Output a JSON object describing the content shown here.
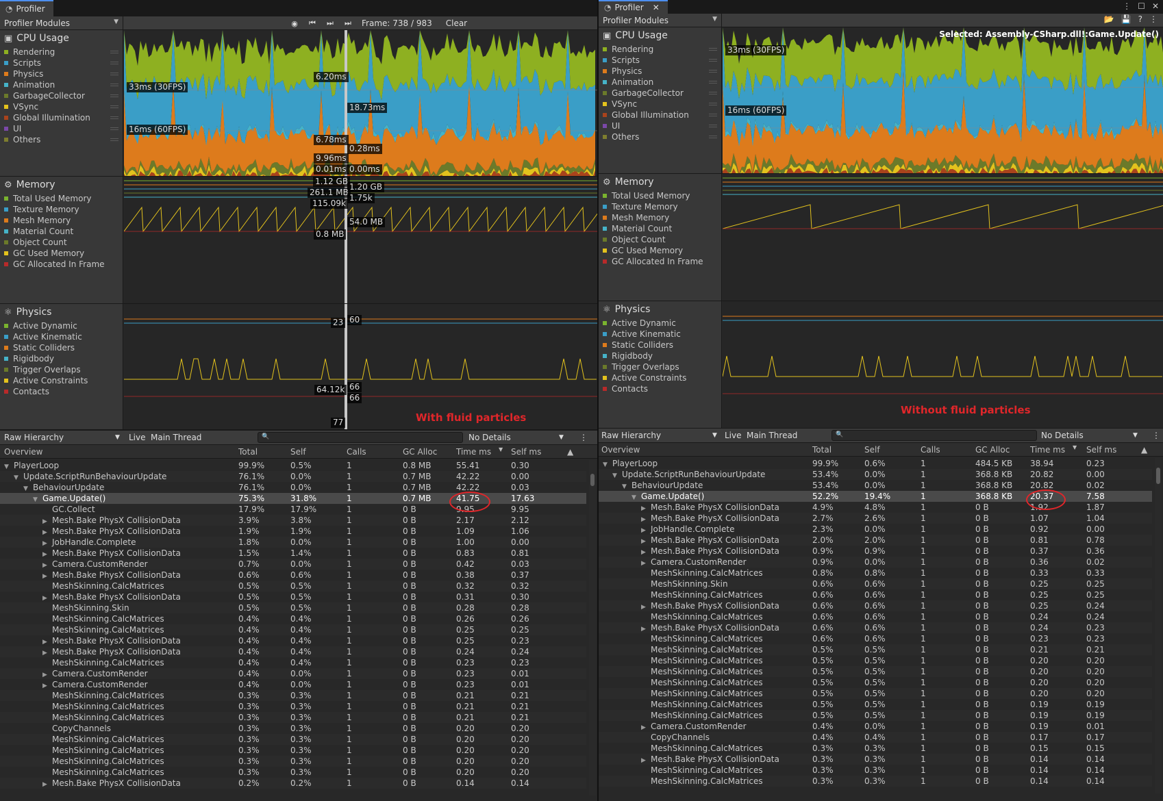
{
  "left": {
    "tab_title": "Profiler",
    "modules_dropdown": "Profiler Modules",
    "frame_label": "Frame: 738 / 983",
    "clear_label": "Clear",
    "cpu": {
      "title": "CPU Usage",
      "legend": [
        "Rendering",
        "Scripts",
        "Physics",
        "Animation",
        "GarbageCollector",
        "VSync",
        "Global Illumination",
        "UI",
        "Others"
      ],
      "markers": [
        "33ms (30FPS)",
        "16ms (60FPS)",
        "6.20ms",
        "18.73ms",
        "6.78ms",
        "0.28ms",
        "9.96ms",
        "0.01ms",
        "0.00ms"
      ]
    },
    "memory": {
      "title": "Memory",
      "legend": [
        "Total Used Memory",
        "Texture Memory",
        "Mesh Memory",
        "Material Count",
        "Object Count",
        "GC Used Memory",
        "GC Allocated In Frame"
      ],
      "markers": [
        "1.12 GB",
        "1.20 GB",
        "261.1 MB",
        "1.75k",
        "115.09k",
        "54.0 MB",
        "0.8 MB"
      ]
    },
    "physics": {
      "title": "Physics",
      "legend": [
        "Active Dynamic",
        "Active Kinematic",
        "Static Colliders",
        "Rigidbody",
        "Trigger Overlaps",
        "Active Constraints",
        "Contacts"
      ],
      "markers": [
        "23",
        "60",
        "64.12k",
        "66",
        "66",
        "77"
      ]
    },
    "caption": "With fluid particles",
    "hierarchy": {
      "view": "Raw Hierarchy",
      "live": "Live",
      "thread": "Main Thread",
      "details": "No Details",
      "columns": [
        "Overview",
        "Total",
        "Self",
        "Calls",
        "GC Alloc",
        "Time ms",
        "Self ms"
      ],
      "rows": [
        {
          "name": "PlayerLoop",
          "indent": 0,
          "arrow": "▼",
          "total": "99.9%",
          "self": "0.5%",
          "calls": "1",
          "gc": "0.8 MB",
          "time": "55.41",
          "selfms": "0.30"
        },
        {
          "name": "Update.ScriptRunBehaviourUpdate",
          "indent": 1,
          "arrow": "▼",
          "total": "76.1%",
          "self": "0.0%",
          "calls": "1",
          "gc": "0.7 MB",
          "time": "42.22",
          "selfms": "0.00"
        },
        {
          "name": "BehaviourUpdate",
          "indent": 2,
          "arrow": "▼",
          "total": "76.1%",
          "self": "0.0%",
          "calls": "1",
          "gc": "0.7 MB",
          "time": "42.22",
          "selfms": "0.03"
        },
        {
          "name": "Game.Update()",
          "indent": 3,
          "arrow": "▼",
          "total": "75.3%",
          "self": "31.8%",
          "calls": "1",
          "gc": "0.7 MB",
          "time": "41.75",
          "selfms": "17.63",
          "sel": true
        },
        {
          "name": "GC.Collect",
          "indent": 4,
          "arrow": "",
          "total": "17.9%",
          "self": "17.9%",
          "calls": "1",
          "gc": "0 B",
          "time": "9.95",
          "selfms": "9.95"
        },
        {
          "name": "Mesh.Bake PhysX CollisionData",
          "indent": 4,
          "arrow": "▶",
          "total": "3.9%",
          "self": "3.8%",
          "calls": "1",
          "gc": "0 B",
          "time": "2.17",
          "selfms": "2.12"
        },
        {
          "name": "Mesh.Bake PhysX CollisionData",
          "indent": 4,
          "arrow": "▶",
          "total": "1.9%",
          "self": "1.9%",
          "calls": "1",
          "gc": "0 B",
          "time": "1.09",
          "selfms": "1.06"
        },
        {
          "name": "JobHandle.Complete",
          "indent": 4,
          "arrow": "▶",
          "total": "1.8%",
          "self": "0.0%",
          "calls": "1",
          "gc": "0 B",
          "time": "1.00",
          "selfms": "0.00"
        },
        {
          "name": "Mesh.Bake PhysX CollisionData",
          "indent": 4,
          "arrow": "▶",
          "total": "1.5%",
          "self": "1.4%",
          "calls": "1",
          "gc": "0 B",
          "time": "0.83",
          "selfms": "0.81"
        },
        {
          "name": "Camera.CustomRender",
          "indent": 4,
          "arrow": "▶",
          "total": "0.7%",
          "self": "0.0%",
          "calls": "1",
          "gc": "0 B",
          "time": "0.42",
          "selfms": "0.03"
        },
        {
          "name": "Mesh.Bake PhysX CollisionData",
          "indent": 4,
          "arrow": "▶",
          "total": "0.6%",
          "self": "0.6%",
          "calls": "1",
          "gc": "0 B",
          "time": "0.38",
          "selfms": "0.37"
        },
        {
          "name": "MeshSkinning.CalcMatrices",
          "indent": 4,
          "arrow": "",
          "total": "0.5%",
          "self": "0.5%",
          "calls": "1",
          "gc": "0 B",
          "time": "0.32",
          "selfms": "0.32"
        },
        {
          "name": "Mesh.Bake PhysX CollisionData",
          "indent": 4,
          "arrow": "▶",
          "total": "0.5%",
          "self": "0.5%",
          "calls": "1",
          "gc": "0 B",
          "time": "0.31",
          "selfms": "0.30"
        },
        {
          "name": "MeshSkinning.Skin",
          "indent": 4,
          "arrow": "",
          "total": "0.5%",
          "self": "0.5%",
          "calls": "1",
          "gc": "0 B",
          "time": "0.28",
          "selfms": "0.28"
        },
        {
          "name": "MeshSkinning.CalcMatrices",
          "indent": 4,
          "arrow": "",
          "total": "0.4%",
          "self": "0.4%",
          "calls": "1",
          "gc": "0 B",
          "time": "0.26",
          "selfms": "0.26"
        },
        {
          "name": "MeshSkinning.CalcMatrices",
          "indent": 4,
          "arrow": "",
          "total": "0.4%",
          "self": "0.4%",
          "calls": "1",
          "gc": "0 B",
          "time": "0.25",
          "selfms": "0.25"
        },
        {
          "name": "Mesh.Bake PhysX CollisionData",
          "indent": 4,
          "arrow": "▶",
          "total": "0.4%",
          "self": "0.4%",
          "calls": "1",
          "gc": "0 B",
          "time": "0.25",
          "selfms": "0.23"
        },
        {
          "name": "Mesh.Bake PhysX CollisionData",
          "indent": 4,
          "arrow": "▶",
          "total": "0.4%",
          "self": "0.4%",
          "calls": "1",
          "gc": "0 B",
          "time": "0.24",
          "selfms": "0.24"
        },
        {
          "name": "MeshSkinning.CalcMatrices",
          "indent": 4,
          "arrow": "",
          "total": "0.4%",
          "self": "0.4%",
          "calls": "1",
          "gc": "0 B",
          "time": "0.23",
          "selfms": "0.23"
        },
        {
          "name": "Camera.CustomRender",
          "indent": 4,
          "arrow": "▶",
          "total": "0.4%",
          "self": "0.0%",
          "calls": "1",
          "gc": "0 B",
          "time": "0.23",
          "selfms": "0.01"
        },
        {
          "name": "Camera.CustomRender",
          "indent": 4,
          "arrow": "▶",
          "total": "0.4%",
          "self": "0.0%",
          "calls": "1",
          "gc": "0 B",
          "time": "0.23",
          "selfms": "0.01"
        },
        {
          "name": "MeshSkinning.CalcMatrices",
          "indent": 4,
          "arrow": "",
          "total": "0.3%",
          "self": "0.3%",
          "calls": "1",
          "gc": "0 B",
          "time": "0.21",
          "selfms": "0.21"
        },
        {
          "name": "MeshSkinning.CalcMatrices",
          "indent": 4,
          "arrow": "",
          "total": "0.3%",
          "self": "0.3%",
          "calls": "1",
          "gc": "0 B",
          "time": "0.21",
          "selfms": "0.21"
        },
        {
          "name": "MeshSkinning.CalcMatrices",
          "indent": 4,
          "arrow": "",
          "total": "0.3%",
          "self": "0.3%",
          "calls": "1",
          "gc": "0 B",
          "time": "0.21",
          "selfms": "0.21"
        },
        {
          "name": "CopyChannels",
          "indent": 4,
          "arrow": "",
          "total": "0.3%",
          "self": "0.3%",
          "calls": "1",
          "gc": "0 B",
          "time": "0.20",
          "selfms": "0.20"
        },
        {
          "name": "MeshSkinning.CalcMatrices",
          "indent": 4,
          "arrow": "",
          "total": "0.3%",
          "self": "0.3%",
          "calls": "1",
          "gc": "0 B",
          "time": "0.20",
          "selfms": "0.20"
        },
        {
          "name": "MeshSkinning.CalcMatrices",
          "indent": 4,
          "arrow": "",
          "total": "0.3%",
          "self": "0.3%",
          "calls": "1",
          "gc": "0 B",
          "time": "0.20",
          "selfms": "0.20"
        },
        {
          "name": "MeshSkinning.CalcMatrices",
          "indent": 4,
          "arrow": "",
          "total": "0.3%",
          "self": "0.3%",
          "calls": "1",
          "gc": "0 B",
          "time": "0.20",
          "selfms": "0.20"
        },
        {
          "name": "MeshSkinning.CalcMatrices",
          "indent": 4,
          "arrow": "",
          "total": "0.3%",
          "self": "0.3%",
          "calls": "1",
          "gc": "0 B",
          "time": "0.20",
          "selfms": "0.20"
        },
        {
          "name": "Mesh.Bake PhysX CollisionData",
          "indent": 4,
          "arrow": "▶",
          "total": "0.2%",
          "self": "0.2%",
          "calls": "1",
          "gc": "0 B",
          "time": "0.14",
          "selfms": "0.14"
        }
      ]
    }
  },
  "right": {
    "tab_title": "Profiler",
    "modules_dropdown": "Profiler Modules",
    "selected_label": "Selected: Assembly-CSharp.dll!:Game.Update()",
    "cpu": {
      "title": "CPU Usage",
      "legend": [
        "Rendering",
        "Scripts",
        "Physics",
        "Animation",
        "GarbageCollector",
        "VSync",
        "Global Illumination",
        "UI",
        "Others"
      ],
      "markers": [
        "33ms (30FPS)",
        "16ms (60FPS)"
      ]
    },
    "memory": {
      "title": "Memory",
      "legend": [
        "Total Used Memory",
        "Texture Memory",
        "Mesh Memory",
        "Material Count",
        "Object Count",
        "GC Used Memory",
        "GC Allocated In Frame"
      ]
    },
    "physics": {
      "title": "Physics",
      "legend": [
        "Active Dynamic",
        "Active Kinematic",
        "Static Colliders",
        "Rigidbody",
        "Trigger Overlaps",
        "Active Constraints",
        "Contacts"
      ]
    },
    "caption": "Without fluid particles",
    "hierarchy": {
      "view": "Raw Hierarchy",
      "live": "Live",
      "thread": "Main Thread",
      "details": "No Details",
      "columns": [
        "Overview",
        "Total",
        "Self",
        "Calls",
        "GC Alloc",
        "Time ms",
        "Self ms"
      ],
      "rows": [
        {
          "name": "PlayerLoop",
          "indent": 0,
          "arrow": "▼",
          "total": "99.9%",
          "self": "0.6%",
          "calls": "1",
          "gc": "484.5 KB",
          "time": "38.94",
          "selfms": "0.23"
        },
        {
          "name": "Update.ScriptRunBehaviourUpdate",
          "indent": 1,
          "arrow": "▼",
          "total": "53.4%",
          "self": "0.0%",
          "calls": "1",
          "gc": "368.8 KB",
          "time": "20.82",
          "selfms": "0.00"
        },
        {
          "name": "BehaviourUpdate",
          "indent": 2,
          "arrow": "▼",
          "total": "53.4%",
          "self": "0.0%",
          "calls": "1",
          "gc": "368.8 KB",
          "time": "20.82",
          "selfms": "0.02"
        },
        {
          "name": "Game.Update()",
          "indent": 3,
          "arrow": "▼",
          "total": "52.2%",
          "self": "19.4%",
          "calls": "1",
          "gc": "368.8 KB",
          "time": "20.37",
          "selfms": "7.58",
          "sel": true
        },
        {
          "name": "Mesh.Bake PhysX CollisionData",
          "indent": 4,
          "arrow": "▶",
          "total": "4.9%",
          "self": "4.8%",
          "calls": "1",
          "gc": "0 B",
          "time": "1.92",
          "selfms": "1.87"
        },
        {
          "name": "Mesh.Bake PhysX CollisionData",
          "indent": 4,
          "arrow": "▶",
          "total": "2.7%",
          "self": "2.6%",
          "calls": "1",
          "gc": "0 B",
          "time": "1.07",
          "selfms": "1.04"
        },
        {
          "name": "JobHandle.Complete",
          "indent": 4,
          "arrow": "▶",
          "total": "2.3%",
          "self": "0.0%",
          "calls": "1",
          "gc": "0 B",
          "time": "0.92",
          "selfms": "0.00"
        },
        {
          "name": "Mesh.Bake PhysX CollisionData",
          "indent": 4,
          "arrow": "▶",
          "total": "2.0%",
          "self": "2.0%",
          "calls": "1",
          "gc": "0 B",
          "time": "0.81",
          "selfms": "0.78"
        },
        {
          "name": "Mesh.Bake PhysX CollisionData",
          "indent": 4,
          "arrow": "▶",
          "total": "0.9%",
          "self": "0.9%",
          "calls": "1",
          "gc": "0 B",
          "time": "0.37",
          "selfms": "0.36"
        },
        {
          "name": "Camera.CustomRender",
          "indent": 4,
          "arrow": "▶",
          "total": "0.9%",
          "self": "0.0%",
          "calls": "1",
          "gc": "0 B",
          "time": "0.36",
          "selfms": "0.02"
        },
        {
          "name": "MeshSkinning.CalcMatrices",
          "indent": 4,
          "arrow": "",
          "total": "0.8%",
          "self": "0.8%",
          "calls": "1",
          "gc": "0 B",
          "time": "0.33",
          "selfms": "0.33"
        },
        {
          "name": "MeshSkinning.Skin",
          "indent": 4,
          "arrow": "",
          "total": "0.6%",
          "self": "0.6%",
          "calls": "1",
          "gc": "0 B",
          "time": "0.25",
          "selfms": "0.25"
        },
        {
          "name": "MeshSkinning.CalcMatrices",
          "indent": 4,
          "arrow": "",
          "total": "0.6%",
          "self": "0.6%",
          "calls": "1",
          "gc": "0 B",
          "time": "0.25",
          "selfms": "0.25"
        },
        {
          "name": "Mesh.Bake PhysX CollisionData",
          "indent": 4,
          "arrow": "▶",
          "total": "0.6%",
          "self": "0.6%",
          "calls": "1",
          "gc": "0 B",
          "time": "0.25",
          "selfms": "0.24"
        },
        {
          "name": "MeshSkinning.CalcMatrices",
          "indent": 4,
          "arrow": "",
          "total": "0.6%",
          "self": "0.6%",
          "calls": "1",
          "gc": "0 B",
          "time": "0.24",
          "selfms": "0.24"
        },
        {
          "name": "Mesh.Bake PhysX CollisionData",
          "indent": 4,
          "arrow": "▶",
          "total": "0.6%",
          "self": "0.6%",
          "calls": "1",
          "gc": "0 B",
          "time": "0.24",
          "selfms": "0.23"
        },
        {
          "name": "MeshSkinning.CalcMatrices",
          "indent": 4,
          "arrow": "",
          "total": "0.6%",
          "self": "0.6%",
          "calls": "1",
          "gc": "0 B",
          "time": "0.23",
          "selfms": "0.23"
        },
        {
          "name": "MeshSkinning.CalcMatrices",
          "indent": 4,
          "arrow": "",
          "total": "0.5%",
          "self": "0.5%",
          "calls": "1",
          "gc": "0 B",
          "time": "0.21",
          "selfms": "0.21"
        },
        {
          "name": "MeshSkinning.CalcMatrices",
          "indent": 4,
          "arrow": "",
          "total": "0.5%",
          "self": "0.5%",
          "calls": "1",
          "gc": "0 B",
          "time": "0.20",
          "selfms": "0.20"
        },
        {
          "name": "MeshSkinning.CalcMatrices",
          "indent": 4,
          "arrow": "",
          "total": "0.5%",
          "self": "0.5%",
          "calls": "1",
          "gc": "0 B",
          "time": "0.20",
          "selfms": "0.20"
        },
        {
          "name": "MeshSkinning.CalcMatrices",
          "indent": 4,
          "arrow": "",
          "total": "0.5%",
          "self": "0.5%",
          "calls": "1",
          "gc": "0 B",
          "time": "0.20",
          "selfms": "0.20"
        },
        {
          "name": "MeshSkinning.CalcMatrices",
          "indent": 4,
          "arrow": "",
          "total": "0.5%",
          "self": "0.5%",
          "calls": "1",
          "gc": "0 B",
          "time": "0.20",
          "selfms": "0.20"
        },
        {
          "name": "MeshSkinning.CalcMatrices",
          "indent": 4,
          "arrow": "",
          "total": "0.5%",
          "self": "0.5%",
          "calls": "1",
          "gc": "0 B",
          "time": "0.19",
          "selfms": "0.19"
        },
        {
          "name": "MeshSkinning.CalcMatrices",
          "indent": 4,
          "arrow": "",
          "total": "0.5%",
          "self": "0.5%",
          "calls": "1",
          "gc": "0 B",
          "time": "0.19",
          "selfms": "0.19"
        },
        {
          "name": "Camera.CustomRender",
          "indent": 4,
          "arrow": "▶",
          "total": "0.4%",
          "self": "0.0%",
          "calls": "1",
          "gc": "0 B",
          "time": "0.19",
          "selfms": "0.01"
        },
        {
          "name": "CopyChannels",
          "indent": 4,
          "arrow": "",
          "total": "0.4%",
          "self": "0.4%",
          "calls": "1",
          "gc": "0 B",
          "time": "0.17",
          "selfms": "0.17"
        },
        {
          "name": "MeshSkinning.CalcMatrices",
          "indent": 4,
          "arrow": "",
          "total": "0.3%",
          "self": "0.3%",
          "calls": "1",
          "gc": "0 B",
          "time": "0.15",
          "selfms": "0.15"
        },
        {
          "name": "Mesh.Bake PhysX CollisionData",
          "indent": 4,
          "arrow": "▶",
          "total": "0.3%",
          "self": "0.3%",
          "calls": "1",
          "gc": "0 B",
          "time": "0.14",
          "selfms": "0.14"
        },
        {
          "name": "MeshSkinning.CalcMatrices",
          "indent": 4,
          "arrow": "",
          "total": "0.3%",
          "self": "0.3%",
          "calls": "1",
          "gc": "0 B",
          "time": "0.14",
          "selfms": "0.14"
        },
        {
          "name": "MeshSkinning.CalcMatrices",
          "indent": 4,
          "arrow": "",
          "total": "0.3%",
          "self": "0.3%",
          "calls": "1",
          "gc": "0 B",
          "time": "0.14",
          "selfms": "0.14"
        }
      ]
    }
  },
  "colors": {
    "rendering": "#8eb021",
    "scripts": "#3a9ec7",
    "physics": "#dd7b1c",
    "animation": "#46b3c8",
    "gc": "#6b7a2a",
    "vsync": "#e3c21d",
    "gi": "#a9431c",
    "ui": "#7b48a8",
    "others": "#7d7d2e",
    "mem": [
      "#7ab32e",
      "#3a9ec7",
      "#dd7b1c",
      "#46b3c8",
      "#6b7a2a",
      "#e3c21d",
      "#b82a2a"
    ],
    "phys": [
      "#7ab32e",
      "#3a9ec7",
      "#dd7b1c",
      "#46b3c8",
      "#6b7a2a",
      "#e3c21d",
      "#b82a2a"
    ],
    "caption": "#e0262a"
  }
}
